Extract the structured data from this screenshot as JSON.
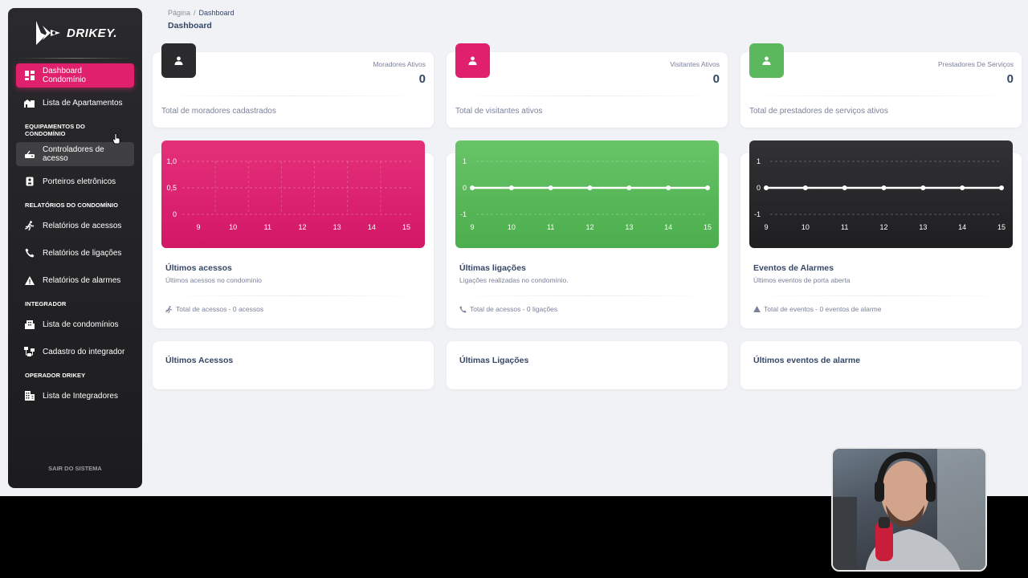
{
  "app": {
    "brand": "DRIKEY.",
    "colors": {
      "primary": "#e0206d",
      "green": "#5cb85c",
      "dark": "#2b2b2d",
      "sidebar": "#232325",
      "background": "#f0f2f5"
    }
  },
  "sidebar": {
    "items": [
      {
        "label": "Dashboard Condomínio",
        "icon": "dashboard-icon",
        "active": true
      },
      {
        "label": "Lista de Apartamentos",
        "icon": "buildings-icon"
      }
    ],
    "sections": [
      {
        "title": "EQUIPAMENTOS DO CONDOMÍNIO",
        "items": [
          {
            "label": "Controladores de acesso",
            "icon": "router-icon"
          },
          {
            "label": "Porteiros eletrônicos",
            "icon": "intercom-icon"
          }
        ]
      },
      {
        "title": "RELATÓRIOS DO CONDOMÍNIO",
        "items": [
          {
            "label": "Relatórios de acessos",
            "icon": "running-person-icon"
          },
          {
            "label": "Relatórios de ligações",
            "icon": "phone-icon"
          },
          {
            "label": "Relatórios de alarmes",
            "icon": "warning-icon"
          }
        ]
      },
      {
        "title": "INTEGRADOR",
        "items": [
          {
            "label": "Lista de condomínios",
            "icon": "building-icon"
          },
          {
            "label": "Cadastro do integrador",
            "icon": "network-icon"
          }
        ]
      },
      {
        "title": "OPERADOR DRIKEY",
        "items": [
          {
            "label": "Lista de Integradores",
            "icon": "building-list-icon"
          }
        ]
      }
    ],
    "logout": "SAIR DO SISTEMA"
  },
  "breadcrumb": {
    "root": "Página",
    "separator": "/",
    "current": "Dashboard"
  },
  "page_title": "Dashboard",
  "stats": [
    {
      "label": "Moradores Ativos",
      "value": "0",
      "footer": "Total de moradores cadastrados",
      "color": "#2b2b2d"
    },
    {
      "label": "Visitantes Ativos",
      "value": "0",
      "footer": "Total de visitantes ativos",
      "color": "#e0206d"
    },
    {
      "label": "Prestadores De Serviços",
      "value": "0",
      "footer": "Total de prestadores de serviços ativos",
      "color": "#5cb85c"
    }
  ],
  "charts": [
    {
      "title": "Últimos acessos",
      "subtitle": "Últimos acessos no condomínio",
      "footer": "Total de acessos - 0 acessos",
      "footer_icon": "running-person-icon"
    },
    {
      "title": "Últimas ligações",
      "subtitle": "Ligações realizadas no condomínio.",
      "footer": "Total de acessos - 0 ligações",
      "footer_icon": "phone-icon"
    },
    {
      "title": "Eventos de Alarmes",
      "subtitle": "Últimos eventos de porta aberta",
      "footer": "Total de eventos - 0 eventos de alarme",
      "footer_icon": "warning-icon"
    }
  ],
  "chart_data": [
    {
      "type": "bar",
      "categories": [
        "9",
        "10",
        "11",
        "12",
        "13",
        "14",
        "15"
      ],
      "values": [
        0,
        0,
        0,
        0,
        0,
        0,
        0
      ],
      "yticks": [
        "1,0",
        "0,5",
        "0"
      ],
      "ylim": [
        0,
        1
      ],
      "grid": true,
      "background": "#e0206d"
    },
    {
      "type": "line",
      "categories": [
        "9",
        "10",
        "11",
        "12",
        "13",
        "14",
        "15"
      ],
      "values": [
        0,
        0,
        0,
        0,
        0,
        0,
        0
      ],
      "yticks": [
        "1",
        "0",
        "-1"
      ],
      "ylim": [
        -1,
        1
      ],
      "grid": true,
      "background": "#5cb85c"
    },
    {
      "type": "line",
      "categories": [
        "9",
        "10",
        "11",
        "12",
        "13",
        "14",
        "15"
      ],
      "values": [
        0,
        0,
        0,
        0,
        0,
        0,
        0
      ],
      "yticks": [
        "1",
        "0",
        "-1"
      ],
      "ylim": [
        -1,
        1
      ],
      "grid": true,
      "background": "#2b2b2d"
    }
  ],
  "lists": [
    {
      "title": "Últimos Acessos"
    },
    {
      "title": "Últimas Ligações"
    },
    {
      "title": "Últimos eventos de alarme"
    }
  ]
}
